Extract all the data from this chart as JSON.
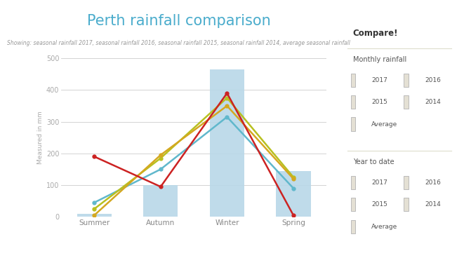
{
  "title": "Perth rainfall comparison",
  "subtitle": "Showing: seasonal rainfall 2017, seasonal rainfall 2016, seasonal rainfall 2015, seasonal rainfall 2014, average seasonal rainfall",
  "ylabel": "Measured in mm",
  "categories": [
    "Summer",
    "Autumn",
    "Winter",
    "Spring"
  ],
  "ylim": [
    0,
    500
  ],
  "yticks": [
    0,
    100,
    200,
    300,
    400,
    500
  ],
  "bar_values": [
    10,
    100,
    465,
    145
  ],
  "bar_color": "#b8d8e8",
  "lines": [
    {
      "label": "2017",
      "values": [
        190,
        95,
        390,
        5
      ],
      "color": "#cc2222",
      "lw": 1.8,
      "zorder": 5
    },
    {
      "label": "2016",
      "values": [
        5,
        195,
        350,
        120
      ],
      "color": "#d4a820",
      "lw": 1.8,
      "zorder": 4
    },
    {
      "label": "2015",
      "values": [
        25,
        185,
        375,
        125
      ],
      "color": "#b8c020",
      "lw": 1.8,
      "zorder": 3
    },
    {
      "label": "Average",
      "values": [
        45,
        150,
        315,
        90
      ],
      "color": "#60b8cc",
      "lw": 1.8,
      "zorder": 2
    }
  ],
  "sidebar_bg": "#f7f2e2",
  "main_bg": "#ffffff",
  "title_color": "#4aaccc",
  "subtitle_color": "#999999",
  "sidebar_title": "Compare!",
  "sidebar_monthly": "Monthly rainfall",
  "sidebar_ytd": "Year to date",
  "axis_label_color": "#aaaaaa",
  "grid_color": "#cccccc"
}
